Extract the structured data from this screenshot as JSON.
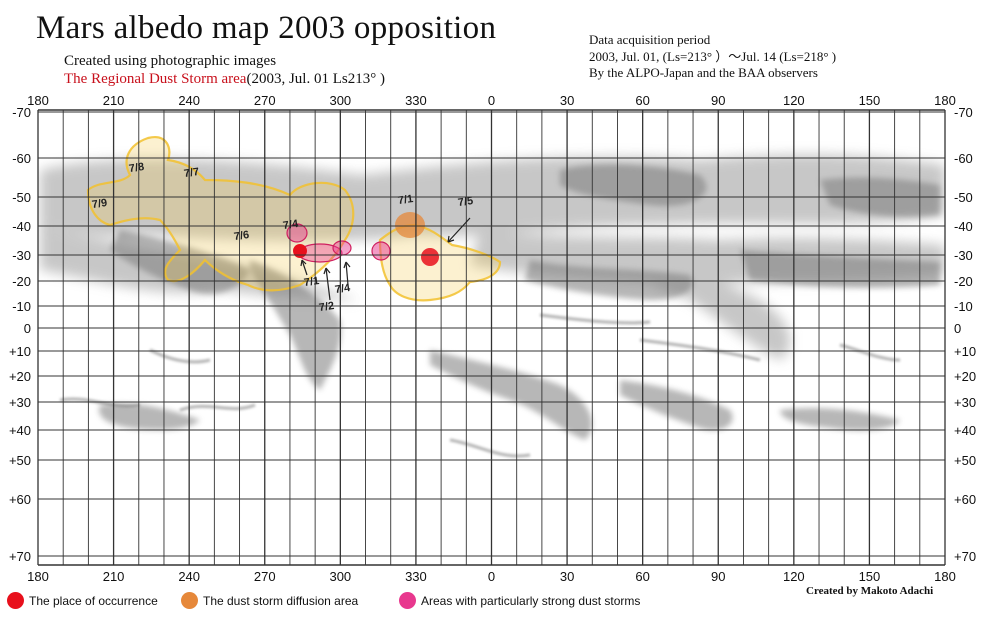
{
  "title": "Mars albedo map 2003 opposition",
  "subtitle_1": "Created using photographic images",
  "subtitle_2_red": "The Regional Dust Storm area",
  "subtitle_2_rest": "(2003, Jul. 01  Ls213°  )",
  "acquisition": {
    "line1": "Data acquisition period",
    "line2": "2003, Jul. 01,  (Ls=213°  ）～Jul. 14 (Ls=218°  )",
    "line3": "By the ALPO-Japan and the BAA observers"
  },
  "credit": "Created by Makoto Adachi",
  "axes": {
    "longitude_labels": [
      "180",
      "210",
      "240",
      "270",
      "300",
      "330",
      "0",
      "30",
      "60",
      "90",
      "120",
      "150",
      "180"
    ],
    "latitude_labels": [
      "-70",
      "-60",
      "-50",
      "-40",
      "-30",
      "-20",
      "-10",
      "0",
      "+10",
      "+20",
      "+30",
      "+40",
      "+50",
      "+60",
      "+70"
    ]
  },
  "date_marks": [
    {
      "label": "7/9"
    },
    {
      "label": "7/8"
    },
    {
      "label": "7/7"
    },
    {
      "label": "7/6"
    },
    {
      "label": "7/4"
    },
    {
      "label": "7/1"
    },
    {
      "label": "7/2"
    },
    {
      "label": "7/4"
    },
    {
      "label": "7/1"
    },
    {
      "label": "7/5"
    }
  ],
  "legend": [
    {
      "label": "The place of occurrence",
      "color": "#e8101c",
      "icon": "red-dot-icon"
    },
    {
      "label": "The dust storm diffusion area",
      "color": "#e6883a",
      "icon": "orange-dot-icon"
    },
    {
      "label": "Areas with particularly strong dust storms",
      "color": "#e8388e",
      "icon": "pink-dot-icon"
    }
  ],
  "colors": {
    "diffusion_outline": "#f2c12e",
    "occurrence": "#e8101c",
    "strong": "#e8388e",
    "albedo_dark": "#8a8a8a"
  }
}
